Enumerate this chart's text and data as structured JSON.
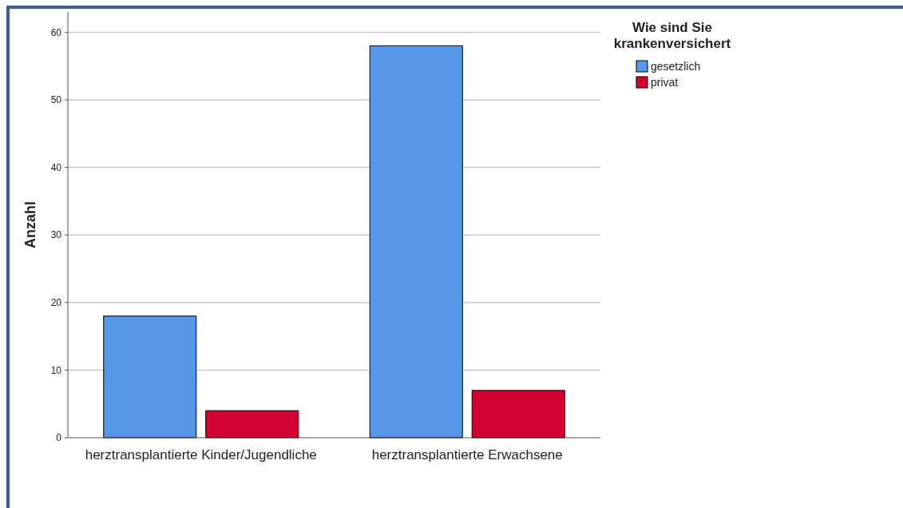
{
  "chart_data": {
    "type": "bar",
    "ylabel": "Anzahl",
    "legend_title": "Wie sind Sie krankenversichert",
    "categories": [
      "herztransplantierte Kinder/Jugendliche",
      "herztransplantierte Erwachsene"
    ],
    "series": [
      {
        "name": "gesetzlich",
        "color": "#5596e6",
        "values": [
          18,
          58
        ]
      },
      {
        "name": "privat",
        "color": "#d50032",
        "values": [
          4,
          7
        ]
      }
    ],
    "ylim": [
      0,
      63
    ],
    "yticks": [
      0,
      10,
      20,
      30,
      40,
      50,
      60
    ],
    "grid": "y",
    "legend": "top right"
  }
}
